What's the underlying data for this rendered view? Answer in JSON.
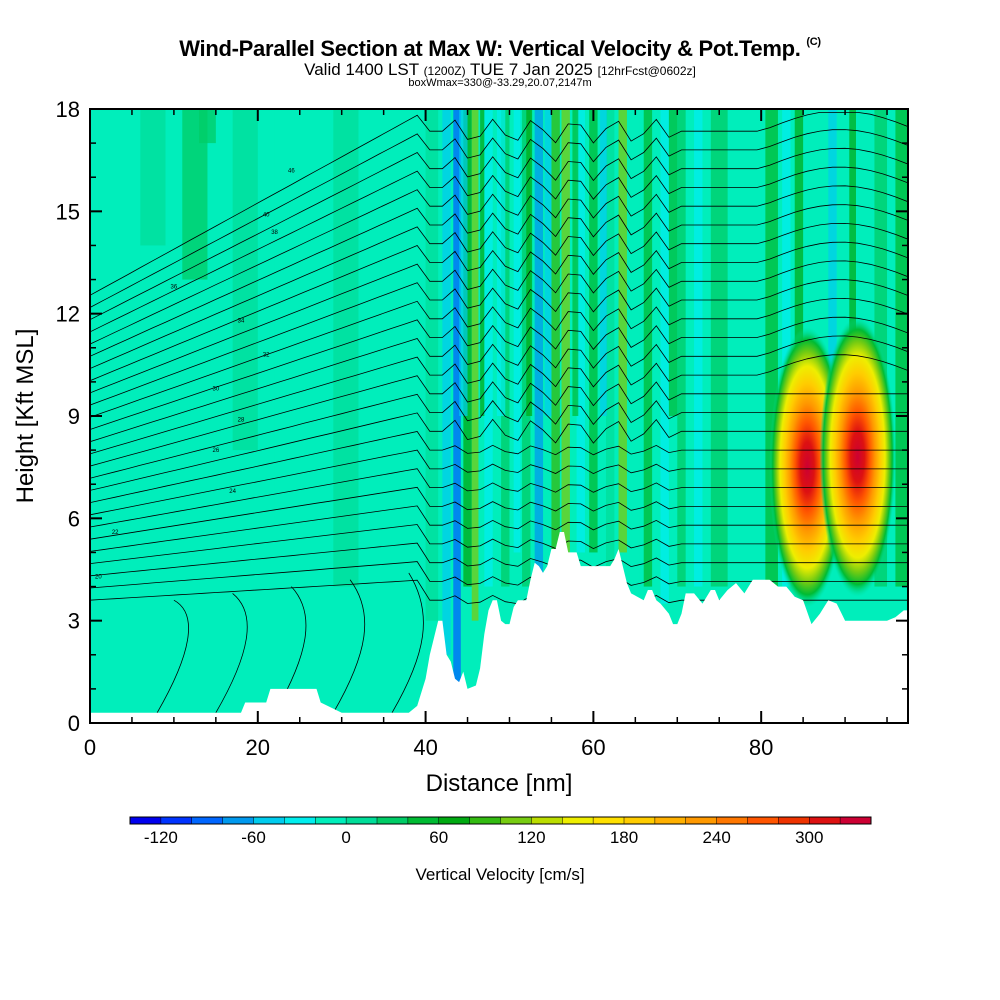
{
  "chart_data": {
    "type": "heatmap",
    "title": "Wind-Parallel Section at Max W: Vertical Velocity & Pot.Temp.",
    "title_mark": "(C)",
    "subtitle_prefix": "Valid 1400 LST",
    "subtitle_utc": "(1200Z)",
    "subtitle_date": "TUE 7 Jan 2025",
    "subtitle_fcst": "[12hrFcst@0602z]",
    "box_info": "boxWmax=330@-33.29,20.07,2147m",
    "xlabel": "Distance [nm]",
    "ylabel": "Height [Kft MSL]",
    "xlim": [
      0,
      97.5
    ],
    "ylim": [
      0,
      18
    ],
    "x_ticks": [
      "0",
      "20",
      "40",
      "60",
      "80"
    ],
    "x_tick_values": [
      0,
      20,
      40,
      60,
      80
    ],
    "y_ticks": [
      "0",
      "3",
      "6",
      "9",
      "12",
      "15",
      "18"
    ],
    "y_tick_values": [
      0,
      3,
      6,
      9,
      12,
      15,
      18
    ],
    "colorbar": {
      "title": "Vertical Velocity [cm/s]",
      "min": -140,
      "max": 340,
      "step": 20,
      "label_values": [
        -120,
        -60,
        0,
        60,
        120,
        180,
        240,
        300
      ],
      "labels": [
        "-120",
        "-60",
        "0",
        "60",
        "120",
        "180",
        "240",
        "300"
      ],
      "colors": [
        "#0000ee",
        "#0033ff",
        "#0066ff",
        "#0099ee",
        "#00ccee",
        "#00eeee",
        "#00eebb",
        "#00dd99",
        "#00cc66",
        "#00bb33",
        "#00aa11",
        "#33bb11",
        "#77cc11",
        "#bbdd00",
        "#eeee00",
        "#ffe000",
        "#ffcc00",
        "#ffb000",
        "#ff9900",
        "#ff7700",
        "#ff5500",
        "#ee3300",
        "#dd1111",
        "#cc0033"
      ]
    },
    "terrain_profile": {
      "x": [
        0,
        5,
        10,
        15,
        18,
        18.5,
        21,
        21.5,
        27,
        27.5,
        30,
        38,
        39,
        40,
        40.5,
        41,
        41.5,
        42,
        42.5,
        43,
        43.5,
        44,
        44.5,
        45,
        46,
        46.5,
        47,
        47.5,
        48,
        48.5,
        49,
        49.5,
        50,
        50.5,
        51,
        52,
        52.5,
        53,
        53.5,
        54,
        54.5,
        55,
        55.5,
        56,
        56.5,
        57,
        58,
        58.5,
        60,
        62,
        62.5,
        63,
        64,
        64.5,
        66,
        66.5,
        67,
        67.5,
        68,
        69,
        69.5,
        70,
        70.5,
        71,
        72,
        73,
        74,
        74.5,
        75,
        76,
        77,
        78,
        79,
        80,
        81,
        82,
        83,
        84,
        85,
        86,
        87,
        88,
        89,
        90,
        91,
        92,
        93,
        94,
        95,
        96,
        97,
        97.5
      ],
      "z": [
        0.3,
        0.3,
        0.3,
        0.3,
        0.3,
        0.6,
        0.6,
        1.0,
        1.0,
        0.6,
        0.3,
        0.3,
        0.5,
        1.3,
        2.0,
        2.5,
        3.0,
        3.0,
        2.0,
        1.8,
        1.3,
        1.2,
        1.5,
        1.0,
        1.1,
        1.6,
        2.6,
        3.3,
        3.6,
        3.6,
        3.0,
        2.9,
        2.9,
        3.4,
        3.6,
        3.6,
        4.2,
        4.7,
        4.6,
        4.4,
        4.6,
        5.1,
        5.1,
        5.6,
        5.6,
        5.0,
        5.0,
        4.6,
        4.6,
        4.6,
        4.8,
        5.1,
        4.1,
        3.8,
        3.6,
        3.9,
        3.9,
        3.6,
        3.5,
        3.2,
        2.9,
        2.9,
        3.2,
        3.8,
        3.8,
        3.5,
        3.9,
        3.9,
        3.6,
        3.9,
        4.1,
        3.8,
        4.2,
        4.2,
        4.2,
        4.0,
        4.0,
        3.7,
        3.6,
        2.9,
        3.2,
        3.6,
        3.5,
        3.0,
        3.0,
        3.0,
        3.0,
        3.0,
        3.0,
        3.1,
        3.3,
        3.3,
        3.3
      ]
    },
    "updraft_cores": [
      {
        "x": 85.5,
        "z": 7.5,
        "peak": 300
      },
      {
        "x": 91.5,
        "z": 7.8,
        "peak": 330
      }
    ],
    "theta_contour_labels": [
      "46",
      "40",
      "38",
      "36",
      "34",
      "32",
      "30",
      "28",
      "26",
      "24",
      "22",
      "20"
    ]
  }
}
